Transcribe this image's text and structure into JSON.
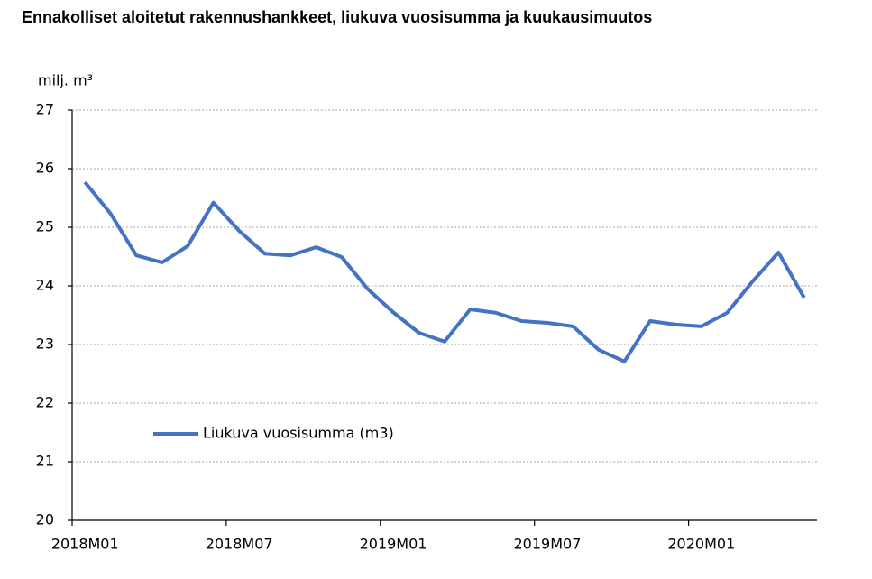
{
  "chart_data": {
    "type": "line",
    "title": "Ennakolliset aloitetut rakennushankkeet, liukuva vuosisumma ja kuukausimuutos",
    "y_label": "milj. m³",
    "categories": [
      "2018M01",
      null,
      null,
      null,
      null,
      null,
      "2018M07",
      null,
      null,
      null,
      null,
      null,
      "2019M01",
      null,
      null,
      null,
      null,
      null,
      "2019M07",
      null,
      null,
      null,
      null,
      null,
      "2020M01",
      null,
      null,
      null,
      null
    ],
    "series": [
      {
        "name": "Liukuva vuosisumma (m3)",
        "color": "#4472c4",
        "values": [
          25.77,
          25.23,
          24.52,
          24.4,
          24.68,
          25.42,
          24.94,
          24.55,
          24.52,
          24.66,
          24.49,
          23.95,
          23.55,
          23.2,
          23.05,
          23.6,
          23.54,
          23.4,
          23.37,
          23.31,
          22.91,
          22.71,
          23.4,
          23.34,
          23.31,
          23.54,
          24.08,
          24.57,
          23.8
        ]
      }
    ],
    "ylim": [
      20,
      27
    ],
    "yticks": [
      20,
      21,
      22,
      23,
      24,
      25,
      26,
      27
    ],
    "grid": true
  }
}
